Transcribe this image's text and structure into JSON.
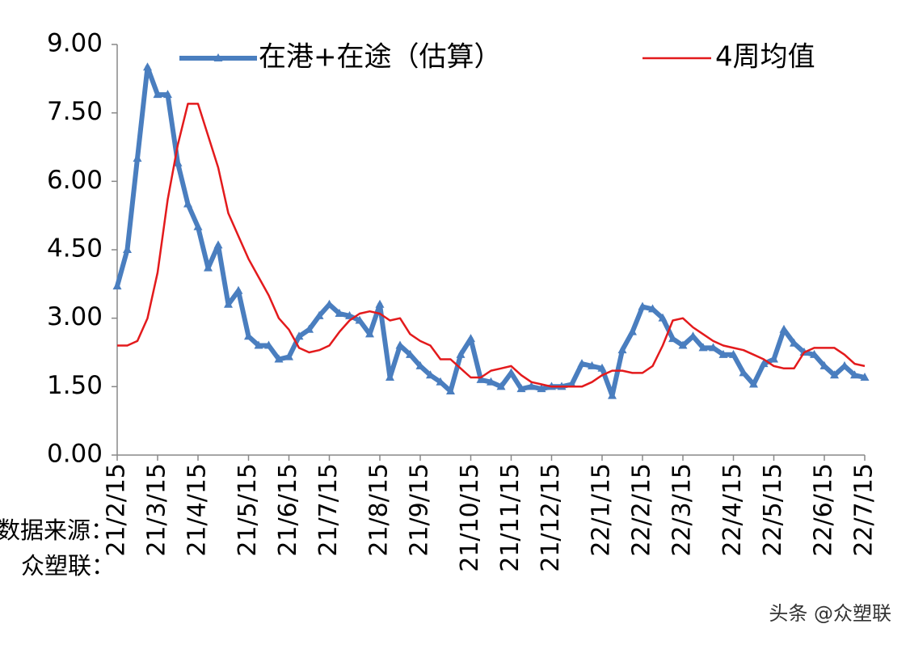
{
  "chart_data": {
    "type": "line",
    "categories": [
      "21/2/15",
      null,
      null,
      null,
      "21/3/15",
      null,
      null,
      null,
      "21/4/15",
      null,
      null,
      null,
      null,
      "21/5/15",
      null,
      null,
      null,
      "21/6/15",
      null,
      null,
      null,
      "21/7/15",
      null,
      null,
      null,
      null,
      "21/8/15",
      null,
      null,
      null,
      "21/9/15",
      null,
      null,
      null,
      null,
      "21/10/15",
      null,
      null,
      null,
      "21/11/15",
      null,
      null,
      null,
      "21/12/15",
      null,
      null,
      null,
      null,
      "22/1/15",
      null,
      null,
      null,
      "22/2/15",
      null,
      null,
      null,
      "22/3/15",
      null,
      null,
      null,
      null,
      "22/4/15",
      null,
      null,
      null,
      "22/5/15",
      null,
      null,
      null,
      null,
      "22/6/15",
      null,
      null,
      null,
      "22/7/15"
    ],
    "series": [
      {
        "name": "在港+在途（估算）",
        "color": "#4a7ebf",
        "values": [
          3.7,
          4.5,
          6.5,
          8.5,
          7.9,
          7.9,
          6.4,
          5.5,
          5.0,
          4.1,
          4.6,
          3.3,
          3.6,
          2.6,
          2.4,
          2.4,
          2.1,
          2.15,
          2.6,
          2.75,
          3.05,
          3.3,
          3.1,
          3.05,
          2.95,
          2.65,
          3.3,
          1.7,
          2.4,
          2.2,
          1.95,
          1.75,
          1.6,
          1.4,
          2.2,
          2.55,
          1.65,
          1.6,
          1.5,
          1.8,
          1.45,
          1.5,
          1.45,
          1.5,
          1.5,
          1.55,
          2.0,
          1.95,
          1.9,
          1.3,
          2.3,
          2.7,
          3.25,
          3.2,
          3.0,
          2.55,
          2.4,
          2.6,
          2.35,
          2.35,
          2.2,
          2.2,
          1.8,
          1.55,
          2.0,
          2.1,
          2.75,
          2.45,
          2.25,
          2.2,
          1.95,
          1.75,
          1.95,
          1.75,
          1.7
        ]
      },
      {
        "name": "4周均值",
        "color": "#e31a1c",
        "values": [
          2.4,
          2.4,
          2.5,
          3.0,
          4.0,
          5.6,
          6.8,
          7.7,
          7.7,
          7.0,
          6.3,
          5.3,
          4.8,
          4.3,
          3.9,
          3.5,
          3.0,
          2.75,
          2.35,
          2.25,
          2.3,
          2.4,
          2.7,
          2.95,
          3.1,
          3.15,
          3.1,
          2.95,
          3.0,
          2.65,
          2.5,
          2.4,
          2.1,
          2.1,
          1.9,
          1.7,
          1.7,
          1.85,
          1.9,
          1.95,
          1.75,
          1.6,
          1.55,
          1.5,
          1.5,
          1.5,
          1.5,
          1.6,
          1.75,
          1.85,
          1.85,
          1.8,
          1.8,
          1.95,
          2.4,
          2.95,
          3.0,
          2.8,
          2.65,
          2.5,
          2.4,
          2.35,
          2.3,
          2.2,
          2.1,
          1.95,
          1.9,
          1.9,
          2.25,
          2.35,
          2.35,
          2.35,
          2.2,
          2.0,
          1.95
        ]
      }
    ],
    "ylim": [
      0,
      9
    ],
    "yticks": [
      {
        "value": 0,
        "label": "0.00"
      },
      {
        "value": 1.5,
        "label": "1.50"
      },
      {
        "value": 3,
        "label": "3.00"
      },
      {
        "value": 4.5,
        "label": "4.50"
      },
      {
        "value": 6,
        "label": "6.00"
      },
      {
        "value": 7.5,
        "label": "7.50"
      },
      {
        "value": 9,
        "label": "9.00"
      }
    ],
    "source_note": [
      "数据来源：",
      "众塑联："
    ],
    "watermark": "头条 @众塑联"
  }
}
